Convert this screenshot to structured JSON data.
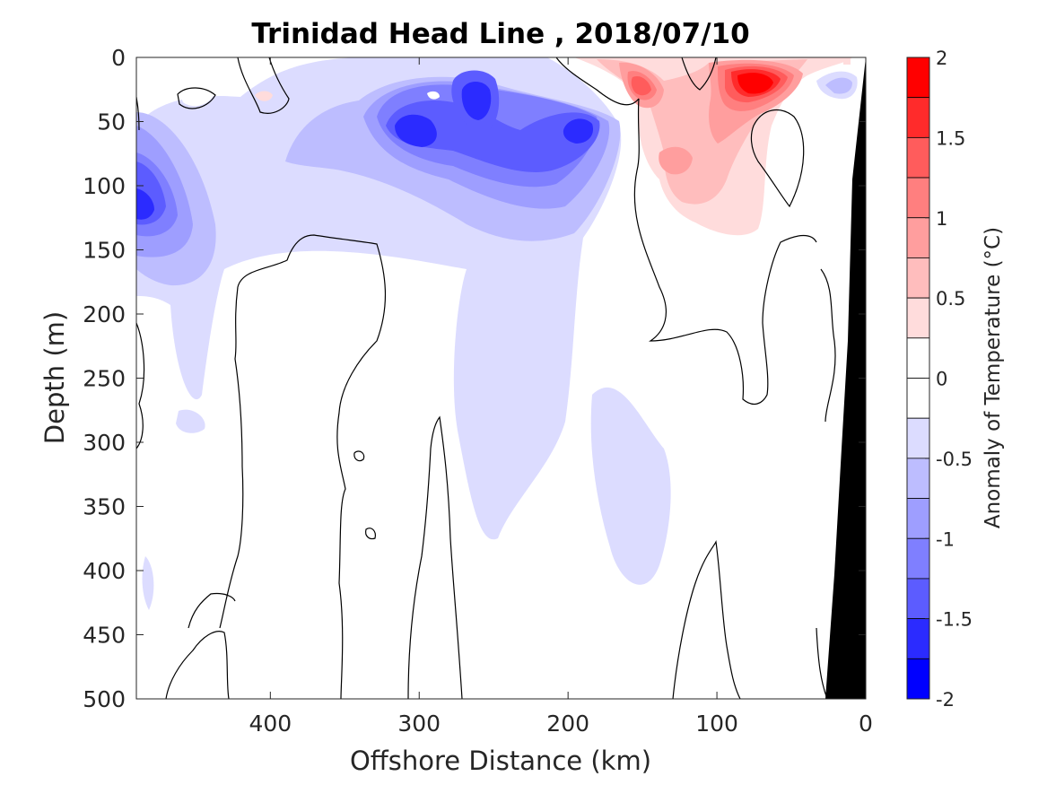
{
  "chart_data": {
    "type": "heatmap",
    "subtype": "filled-contour section",
    "title": "Trinidad Head Line , 2018/07/10",
    "xlabel": "Offshore Distance (km)",
    "ylabel": "Depth (m)",
    "xlim": [
      490,
      0
    ],
    "x_reversed": true,
    "ylim": [
      500,
      0
    ],
    "y_reversed": true,
    "xticks": [
      "400",
      "300",
      "200",
      "100",
      "0"
    ],
    "xtick_values": [
      400,
      300,
      200,
      100,
      0
    ],
    "yticks": [
      "0",
      "50",
      "100",
      "150",
      "200",
      "250",
      "300",
      "350",
      "400",
      "450",
      "500"
    ],
    "ytick_values": [
      0,
      50,
      100,
      150,
      200,
      250,
      300,
      350,
      400,
      450,
      500
    ],
    "colorbar": {
      "label": "Anomaly of Temperature (°C)",
      "range": [
        -2,
        2
      ],
      "step": 0.25,
      "ticks": [
        "2",
        "1.5",
        "1",
        "0.5",
        "0",
        "-0.5",
        "-1",
        "-1.5",
        "-2"
      ],
      "tick_values": [
        2,
        1.5,
        1,
        0.5,
        0,
        -0.5,
        -1,
        -1.5,
        -2
      ],
      "bands": [
        {
          "from": 1.75,
          "to": 2.0,
          "color": "#ff0000"
        },
        {
          "from": 1.5,
          "to": 1.75,
          "color": "#ff2b2b"
        },
        {
          "from": 1.25,
          "to": 1.5,
          "color": "#ff5c5c"
        },
        {
          "from": 1.0,
          "to": 1.25,
          "color": "#ff7f7f"
        },
        {
          "from": 0.75,
          "to": 1.0,
          "color": "#ff9e9e"
        },
        {
          "from": 0.5,
          "to": 0.75,
          "color": "#ffbdbd"
        },
        {
          "from": 0.25,
          "to": 0.5,
          "color": "#ffdcdc"
        },
        {
          "from": 0.0,
          "to": 0.25,
          "color": "#ffffff"
        },
        {
          "from": -0.25,
          "to": 0.0,
          "color": "#ffffff"
        },
        {
          "from": -0.5,
          "to": -0.25,
          "color": "#dcdcff"
        },
        {
          "from": -0.75,
          "to": -0.5,
          "color": "#bdbdff"
        },
        {
          "from": -1.0,
          "to": -0.75,
          "color": "#9e9eff"
        },
        {
          "from": -1.25,
          "to": -1.0,
          "color": "#7f7fff"
        },
        {
          "from": -1.5,
          "to": -1.25,
          "color": "#5c5cff"
        },
        {
          "from": -1.75,
          "to": -1.5,
          "color": "#2b2bff"
        },
        {
          "from": -2.0,
          "to": -1.75,
          "color": "#0000ff"
        }
      ]
    },
    "anomaly_features": [
      {
        "x": 480,
        "y": 115,
        "value": -1.3
      },
      {
        "x": 455,
        "y": 150,
        "value": -0.4
      },
      {
        "x": 300,
        "y": 60,
        "value": -1.6
      },
      {
        "x": 262,
        "y": 33,
        "value": -1.6
      },
      {
        "x": 197,
        "y": 55,
        "value": -1.4
      },
      {
        "x": 235,
        "y": 120,
        "value": -0.75
      },
      {
        "x": 225,
        "y": 280,
        "value": -0.35
      },
      {
        "x": 140,
        "y": 330,
        "value": -0.35
      },
      {
        "x": 75,
        "y": 22,
        "value": 1.9
      },
      {
        "x": 150,
        "y": 25,
        "value": 1.1
      },
      {
        "x": 115,
        "y": 80,
        "value": 0.7
      }
    ],
    "bathymetry_color": "#000000",
    "grid": false,
    "legend": "colorbar-right"
  }
}
